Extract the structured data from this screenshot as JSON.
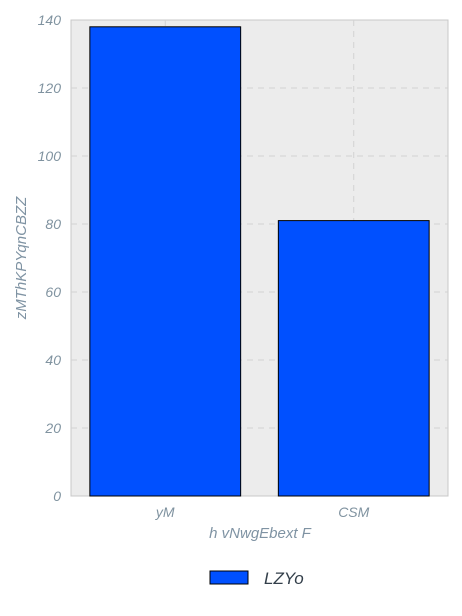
{
  "chart_data": {
    "type": "bar",
    "categories": [
      "yM",
      "CSM"
    ],
    "series": [
      {
        "name": "LZYo",
        "values": [
          138,
          81
        ],
        "color": "#0050ff"
      }
    ],
    "xlabel": "h vNwgEbext F",
    "ylabel": "zMThKPYqnCBZZ",
    "ylim": [
      0,
      140
    ],
    "yticks": [
      0,
      20,
      40,
      60,
      80,
      100,
      120,
      140
    ],
    "grid": true,
    "legend_position": "bottom-center",
    "colors": {
      "plot_background": "#ececec",
      "grid": "#d2d2d2",
      "axis_text": "#8093a0"
    }
  }
}
